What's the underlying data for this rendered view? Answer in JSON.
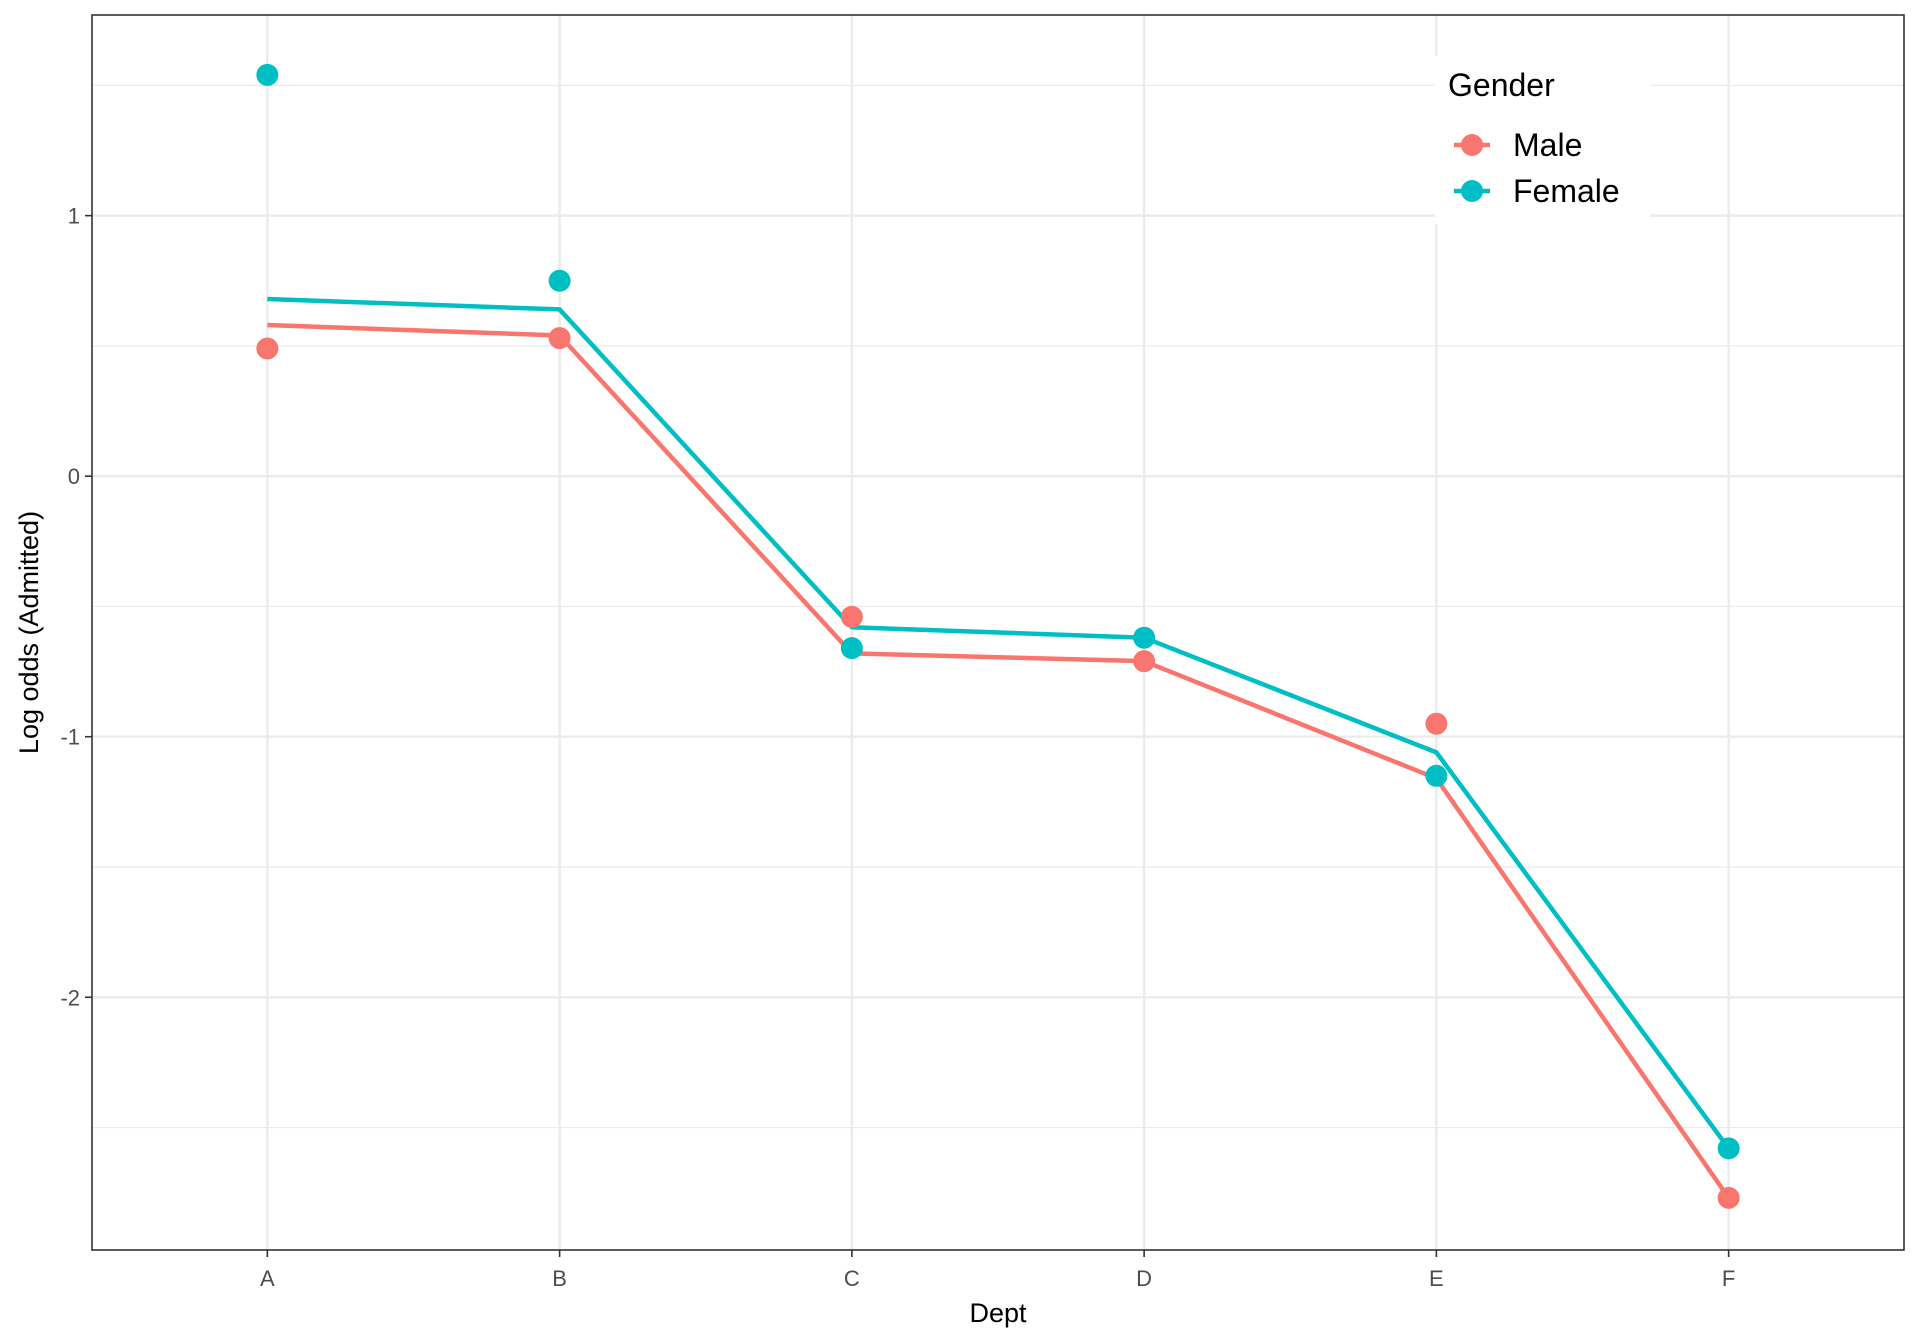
{
  "chart_data": {
    "type": "line",
    "xlabel": "Dept",
    "ylabel": "Log odds (Admitted)",
    "categories": [
      "A",
      "B",
      "C",
      "D",
      "E",
      "F"
    ],
    "ylim": [
      -2.97,
      1.77
    ],
    "y_ticks": [
      1,
      0,
      -1,
      -2
    ],
    "y_tick_labels": [
      "1",
      "0",
      "-1",
      "-2"
    ],
    "grid": true,
    "legend": {
      "title": "Gender",
      "position": "top-right",
      "entries": [
        "Male",
        "Female"
      ]
    },
    "series": [
      {
        "name": "Male",
        "color": "#F8766D",
        "points": [
          0.49,
          0.53,
          -0.54,
          -0.71,
          -0.95,
          -2.77
        ],
        "line": [
          0.58,
          0.54,
          -0.68,
          -0.71,
          -1.16,
          -2.77
        ]
      },
      {
        "name": "Female",
        "color": "#00BFC4",
        "points": [
          1.54,
          0.75,
          -0.66,
          -0.62,
          -1.15,
          -2.58
        ],
        "line": [
          0.68,
          0.64,
          -0.58,
          -0.62,
          -1.06,
          -2.58
        ]
      }
    ]
  }
}
